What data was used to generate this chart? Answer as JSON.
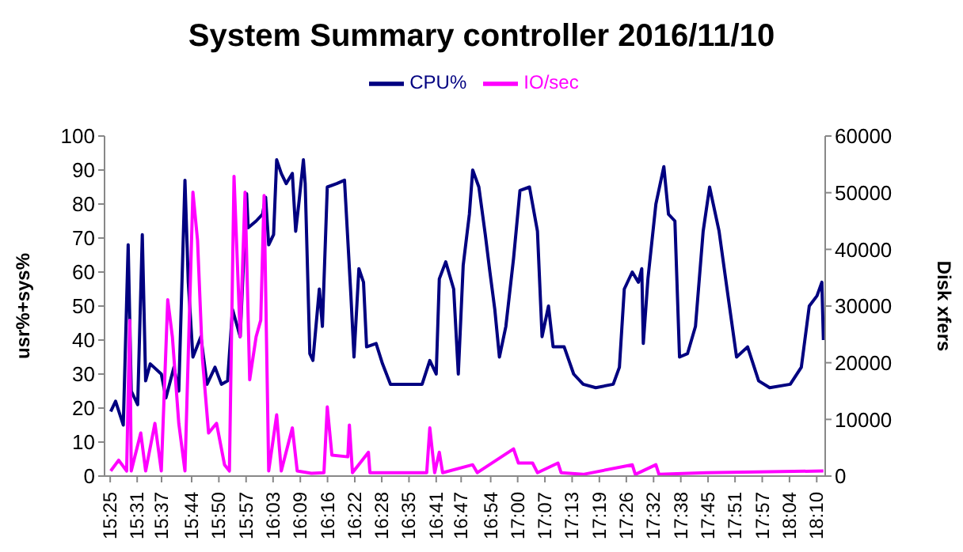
{
  "chart_data": {
    "type": "line",
    "title": "System Summary controller  2016/11/10",
    "ylabel": "usr%+sys%",
    "y2label": "Disk xfers",
    "legend": "top",
    "grid": false,
    "marker": "none",
    "line_style": "solid",
    "xlim": [
      15.395,
      18.2
    ],
    "xticks": [
      {
        "value": 15.417,
        "label": "15:25"
      },
      {
        "value": 15.522,
        "label": "15:31"
      },
      {
        "value": 15.617,
        "label": "15:37"
      },
      {
        "value": 15.734,
        "label": "15:44"
      },
      {
        "value": 15.84,
        "label": "15:50"
      },
      {
        "value": 15.946,
        "label": "15:57"
      },
      {
        "value": 16.051,
        "label": "16:03"
      },
      {
        "value": 16.157,
        "label": "16:09"
      },
      {
        "value": 16.263,
        "label": "16:16"
      },
      {
        "value": 16.369,
        "label": "16:22"
      },
      {
        "value": 16.474,
        "label": "16:28"
      },
      {
        "value": 16.58,
        "label": "16:35"
      },
      {
        "value": 16.686,
        "label": "16:41"
      },
      {
        "value": 16.783,
        "label": "16:47"
      },
      {
        "value": 16.898,
        "label": "16:54"
      },
      {
        "value": 17.003,
        "label": "17:00"
      },
      {
        "value": 17.109,
        "label": "17:07"
      },
      {
        "value": 17.215,
        "label": "17:13"
      },
      {
        "value": 17.321,
        "label": "17:19"
      },
      {
        "value": 17.426,
        "label": "17:26"
      },
      {
        "value": 17.532,
        "label": "17:32"
      },
      {
        "value": 17.638,
        "label": "17:38"
      },
      {
        "value": 17.744,
        "label": "17:45"
      },
      {
        "value": 17.849,
        "label": "17:51"
      },
      {
        "value": 17.955,
        "label": "17:57"
      },
      {
        "value": 18.061,
        "label": "18:04"
      },
      {
        "value": 18.167,
        "label": "18:10"
      }
    ],
    "ylim": [
      0,
      100
    ],
    "yticks": [
      0,
      10,
      20,
      30,
      40,
      50,
      60,
      70,
      80,
      90,
      100
    ],
    "y2lim": [
      0,
      60000
    ],
    "y2ticks": [
      0,
      10000,
      20000,
      30000,
      40000,
      50000,
      60000
    ],
    "series": [
      {
        "name": "CPU%",
        "color": "#000080",
        "x": [
          15.419,
          15.438,
          15.468,
          15.487,
          15.499,
          15.524,
          15.542,
          15.555,
          15.573,
          15.616,
          15.634,
          15.665,
          15.684,
          15.708,
          15.721,
          15.739,
          15.77,
          15.794,
          15.825,
          15.85,
          15.874,
          15.893,
          15.923,
          15.948,
          15.954,
          15.985,
          16.01,
          16.022,
          16.034,
          16.053,
          16.065,
          16.083,
          16.102,
          16.126,
          16.139,
          16.151,
          16.169,
          16.176,
          16.194,
          16.206,
          16.231,
          16.243,
          16.262,
          16.299,
          16.329,
          16.354,
          16.366,
          16.385,
          16.403,
          16.415,
          16.452,
          16.477,
          16.508,
          16.569,
          16.631,
          16.661,
          16.686,
          16.698,
          16.723,
          16.754,
          16.772,
          16.791,
          16.815,
          16.828,
          16.852,
          16.877,
          16.895,
          16.914,
          16.932,
          16.957,
          16.987,
          17.012,
          17.049,
          17.08,
          17.098,
          17.123,
          17.141,
          17.184,
          17.221,
          17.258,
          17.307,
          17.375,
          17.399,
          17.418,
          17.449,
          17.473,
          17.486,
          17.492,
          17.51,
          17.541,
          17.572,
          17.59,
          17.615,
          17.633,
          17.664,
          17.695,
          17.725,
          17.75,
          17.787,
          17.818,
          17.855,
          17.898,
          17.941,
          17.984,
          18.064,
          18.107,
          18.138,
          18.168,
          18.187,
          18.193
        ],
        "values": [
          19,
          22,
          15,
          68,
          25,
          21,
          71,
          28,
          33,
          30,
          23,
          32,
          25,
          87,
          57,
          35,
          41,
          27,
          32,
          27,
          28,
          49,
          41,
          83,
          73,
          75,
          77,
          82,
          68,
          71,
          93,
          89,
          86,
          89,
          72,
          80,
          93,
          86,
          36,
          34,
          55,
          44,
          85,
          86,
          87,
          53,
          35,
          61,
          57,
          38,
          39,
          33,
          27,
          27,
          27,
          34,
          30,
          58,
          63,
          55,
          30,
          62,
          77,
          90,
          85,
          71,
          60,
          49,
          35,
          44,
          64,
          84,
          85,
          72,
          41,
          50,
          38,
          38,
          30,
          27,
          26,
          27,
          32,
          55,
          60,
          57,
          61,
          39,
          58,
          80,
          91,
          77,
          75,
          35,
          36,
          44,
          72,
          85,
          72,
          55,
          35,
          38,
          28,
          26,
          27,
          32,
          50,
          53,
          57,
          40
        ]
      },
      {
        "name": "IO/sec",
        "color": "#ff00ff",
        "axis": "y2",
        "x": [
          15.419,
          15.45,
          15.481,
          15.493,
          15.499,
          15.536,
          15.555,
          15.591,
          15.616,
          15.641,
          15.659,
          15.684,
          15.708,
          15.739,
          15.757,
          15.776,
          15.8,
          15.831,
          15.862,
          15.881,
          15.899,
          15.923,
          15.942,
          15.96,
          15.985,
          16.003,
          16.016,
          16.034,
          16.065,
          16.083,
          16.126,
          16.145,
          16.2,
          16.249,
          16.262,
          16.28,
          16.342,
          16.348,
          16.36,
          16.422,
          16.428,
          16.649,
          16.661,
          16.68,
          16.698,
          16.711,
          16.828,
          16.846,
          16.987,
          17.006,
          17.061,
          17.08,
          17.16,
          17.172,
          17.258,
          17.449,
          17.461,
          17.541,
          17.553,
          17.738,
          18.193
        ],
        "values": [
          900,
          2800,
          900,
          27500,
          900,
          7600,
          900,
          9300,
          900,
          31100,
          24600,
          9300,
          900,
          50100,
          41600,
          20700,
          7600,
          9300,
          2000,
          900,
          52900,
          24600,
          50100,
          17000,
          24600,
          27500,
          49500,
          900,
          10800,
          900,
          8500,
          900,
          500,
          600,
          12200,
          3700,
          3400,
          9000,
          600,
          4200,
          600,
          600,
          8500,
          600,
          4200,
          600,
          2000,
          600,
          4800,
          2300,
          2300,
          600,
          2300,
          600,
          300,
          2000,
          300,
          2000,
          300,
          600,
          900
        ]
      }
    ]
  }
}
